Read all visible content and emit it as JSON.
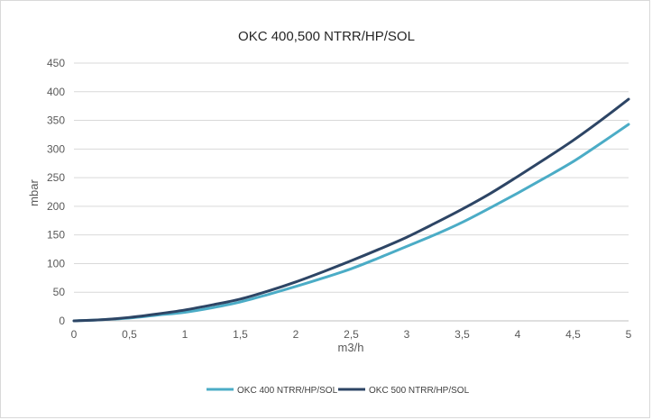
{
  "chart_data": {
    "type": "line",
    "title": "OKC 400,500 NTRR/HP/SOL",
    "xlabel": "m3/h",
    "ylabel": "mbar",
    "xlim": [
      0,
      5
    ],
    "ylim": [
      0,
      450
    ],
    "x_ticks": [
      "0",
      "0,5",
      "1",
      "1,5",
      "2",
      "2,5",
      "3",
      "3,5",
      "4",
      "4,5",
      "5"
    ],
    "x_tick_values": [
      0,
      0.5,
      1,
      1.5,
      2,
      2.5,
      3,
      3.5,
      4,
      4.5,
      5
    ],
    "y_ticks": [
      "0",
      "50",
      "100",
      "150",
      "200",
      "250",
      "300",
      "350",
      "400",
      "450"
    ],
    "y_tick_values": [
      0,
      50,
      100,
      150,
      200,
      250,
      300,
      350,
      400,
      450
    ],
    "grid": true,
    "legend_position": "bottom",
    "x": [
      0,
      0.25,
      0.5,
      0.75,
      1,
      1.25,
      1.5,
      1.75,
      2,
      2.25,
      2.5,
      2.75,
      3,
      3.25,
      3.5,
      3.75,
      4,
      4.25,
      4.5,
      4.75,
      5
    ],
    "series": [
      {
        "name": "OKC 400 NTRR/HP/SOL",
        "color": "#4bacc6",
        "values": [
          0,
          2,
          5,
          10,
          15,
          23,
          33,
          46,
          60,
          75,
          91,
          110,
          130,
          150,
          172,
          197,
          223,
          250,
          278,
          310,
          343
        ]
      },
      {
        "name": "OKC 500 NTRR/HP/SOL",
        "color": "#2d4565",
        "values": [
          0,
          2,
          6,
          12,
          19,
          28,
          38,
          52,
          68,
          86,
          105,
          125,
          146,
          170,
          195,
          222,
          252,
          283,
          315,
          350,
          387
        ]
      }
    ]
  }
}
